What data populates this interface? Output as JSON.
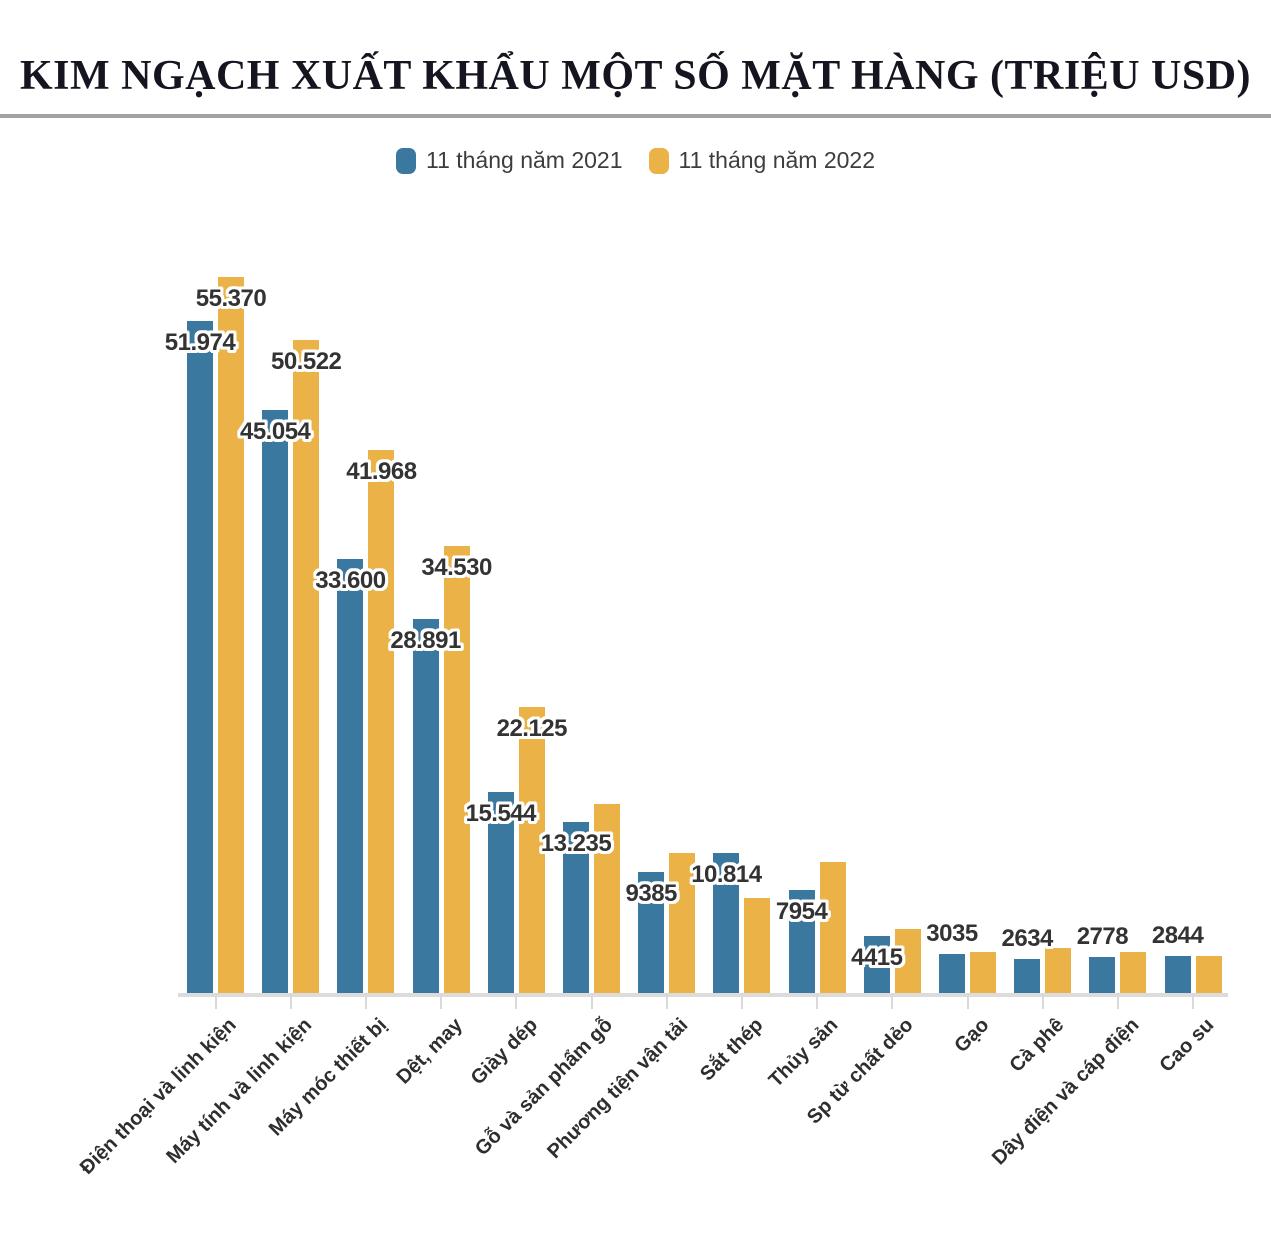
{
  "title": "KIM NGẠCH XUẤT KHẨU MỘT SỐ MẶT HÀNG (TRIỆU USD)",
  "legend": [
    {
      "label": "11 tháng năm 2021",
      "color": "#3b789f"
    },
    {
      "label": "11 tháng năm 2022",
      "color": "#ebb347"
    }
  ],
  "colors": {
    "bar_2021": "#3b789f",
    "bar_2022": "#ebb347",
    "value_label_text": "#333333",
    "value_label_halo": "#ffffff",
    "axis": "#dcdcdc",
    "title_text": "#15151f",
    "title_divider": "#a2a2a2"
  },
  "chart_data": {
    "type": "bar",
    "title": "KIM NGẠCH XUẤT KHẨU MỘT SỐ MẶT HÀNG (TRIỆU USD)",
    "unit": "TRIỆU USD",
    "categories": [
      "Điện thoại và linh kiện",
      "Máy tính và linh kiện",
      "Máy móc thiết bị",
      "Dệt, may",
      "Giày dép",
      "Gỗ và sản phẩm gỗ",
      "Phương tiện vận tải",
      "Sắt thép",
      "Thủy sản",
      "Sp từ chất dẻo",
      "Gạo",
      "Cà phê",
      "Dây điện và cáp điện",
      "Cao su"
    ],
    "series": [
      {
        "name": "11 tháng năm 2021",
        "color": "#3b789f",
        "values": [
          51974,
          45054,
          33600,
          28891,
          15544,
          13235,
          9385,
          10814,
          7954,
          4415,
          3035,
          2634,
          2778,
          2844
        ],
        "data_labels": [
          "51.974",
          "45.054",
          "33.600",
          "28.891",
          "15.544",
          "13.235",
          "9385",
          "10.814",
          "7954",
          "4415",
          "3035",
          "2634",
          "2778",
          "2844"
        ]
      },
      {
        "name": "11 tháng năm 2022",
        "color": "#ebb347",
        "values": [
          55370,
          50522,
          41968,
          34530,
          22125,
          14600,
          10800,
          7350,
          10100,
          4950,
          3170,
          3480,
          3170,
          2860
        ],
        "data_labels": [
          "55.370",
          "50.522",
          "41.968",
          "34.530",
          "22.125",
          "",
          "",
          "",
          "",
          "",
          "",
          "",
          "",
          ""
        ]
      }
    ],
    "ylim": [
      0,
      57300
    ],
    "grid": false,
    "y_axis_shown": false,
    "legend_position": "top-center",
    "x_tick_rotation": -45
  }
}
